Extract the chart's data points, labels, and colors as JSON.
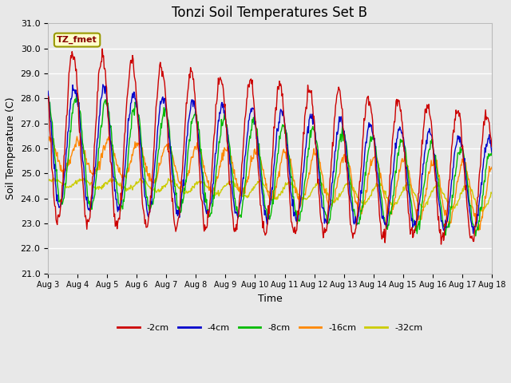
{
  "title": "Tonzi Soil Temperatures Set B",
  "xlabel": "Time",
  "ylabel": "Soil Temperature (C)",
  "ylim": [
    21.0,
    31.0
  ],
  "yticks": [
    21.0,
    22.0,
    23.0,
    24.0,
    25.0,
    26.0,
    27.0,
    28.0,
    29.0,
    30.0,
    31.0
  ],
  "xtick_labels": [
    "Aug 3",
    "Aug 4",
    "Aug 5",
    "Aug 6",
    "Aug 7",
    "Aug 8",
    "Aug 9",
    "Aug 10",
    "Aug 11",
    "Aug 12",
    "Aug 13",
    "Aug 14",
    "Aug 15",
    "Aug 16",
    "Aug 17",
    "Aug 18"
  ],
  "legend_label": "TZ_fmet",
  "series_labels": [
    "-2cm",
    "-4cm",
    "-8cm",
    "-16cm",
    "-32cm"
  ],
  "series_colors": [
    "#cc0000",
    "#0000cc",
    "#00bb00",
    "#ff8800",
    "#cccc00"
  ],
  "background_color": "#e8e8e8",
  "grid_color": "#ffffff",
  "title_fontsize": 12,
  "axis_label_fontsize": 9,
  "tick_fontsize": 8,
  "n_days": 15,
  "pts_per_day": 48
}
